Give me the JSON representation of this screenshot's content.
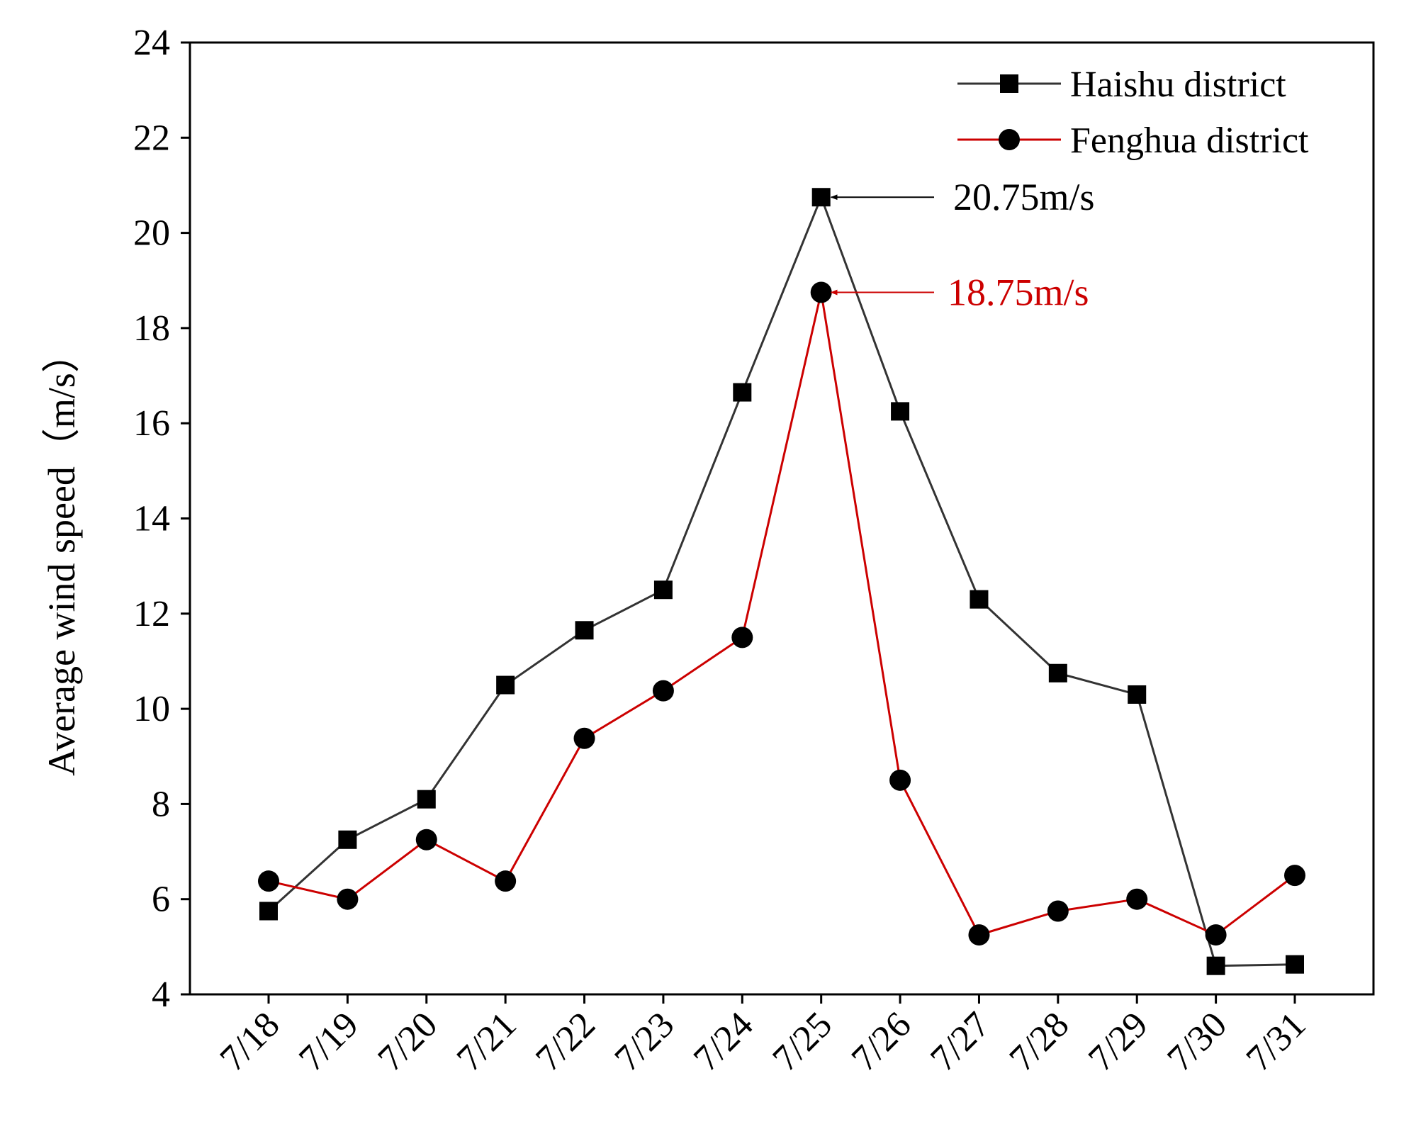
{
  "chart_data": {
    "type": "line",
    "title": "",
    "xlabel": "",
    "ylabel": "Average wind speed（m/s）",
    "ylim": [
      4,
      24
    ],
    "yticks": [
      4,
      6,
      8,
      10,
      12,
      14,
      16,
      18,
      20,
      22,
      24
    ],
    "grid": false,
    "legend_position": "top-right",
    "categories": [
      "7/18",
      "7/19",
      "7/20",
      "7/21",
      "7/22",
      "7/23",
      "7/24",
      "7/25",
      "7/26",
      "7/27",
      "7/28",
      "7/29",
      "7/30",
      "7/31"
    ],
    "series": [
      {
        "name": "Haishu district",
        "color": "#333333",
        "marker": "square",
        "values": [
          5.75,
          7.25,
          8.1,
          10.5,
          11.65,
          12.5,
          16.65,
          20.75,
          16.25,
          12.3,
          10.75,
          10.3,
          4.6,
          4.63
        ]
      },
      {
        "name": "Fenghua district",
        "color": "#cc0000",
        "marker": "circle",
        "values": [
          6.38,
          6.0,
          7.25,
          6.38,
          9.38,
          10.38,
          11.5,
          18.75,
          8.5,
          5.25,
          5.75,
          6.0,
          5.25,
          6.5
        ]
      }
    ],
    "annotations": [
      {
        "text": "20.75m/s",
        "series": 0,
        "category": "7/25",
        "value": 20.75,
        "color": "#000000"
      },
      {
        "text": "18.75m/s",
        "series": 1,
        "category": "7/25",
        "value": 18.75,
        "color": "#cc0000"
      }
    ]
  }
}
